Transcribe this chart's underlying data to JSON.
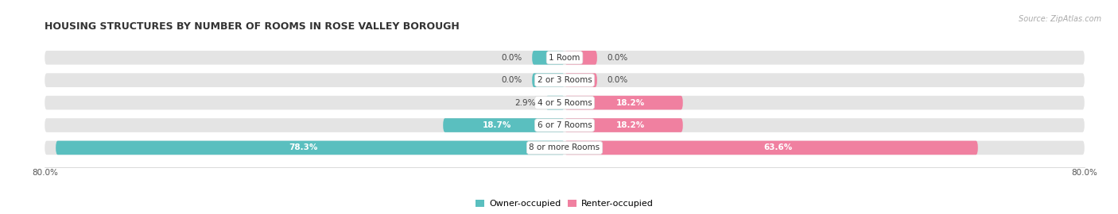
{
  "title": "HOUSING STRUCTURES BY NUMBER OF ROOMS IN ROSE VALLEY BOROUGH",
  "source": "Source: ZipAtlas.com",
  "categories": [
    "1 Room",
    "2 or 3 Rooms",
    "4 or 5 Rooms",
    "6 or 7 Rooms",
    "8 or more Rooms"
  ],
  "owner_values": [
    0.0,
    0.0,
    2.9,
    18.7,
    78.3
  ],
  "renter_values": [
    0.0,
    0.0,
    18.2,
    18.2,
    63.6
  ],
  "x_min": -80.0,
  "x_max": 80.0,
  "owner_color": "#5abfbf",
  "renter_color": "#f080a0",
  "bar_bg_color": "#e4e4e4",
  "bar_height": 0.62,
  "label_color": "#444444",
  "label_color_white": "#ffffff",
  "source_color": "#aaaaaa",
  "title_color": "#333333",
  "spine_color": "#cccccc"
}
